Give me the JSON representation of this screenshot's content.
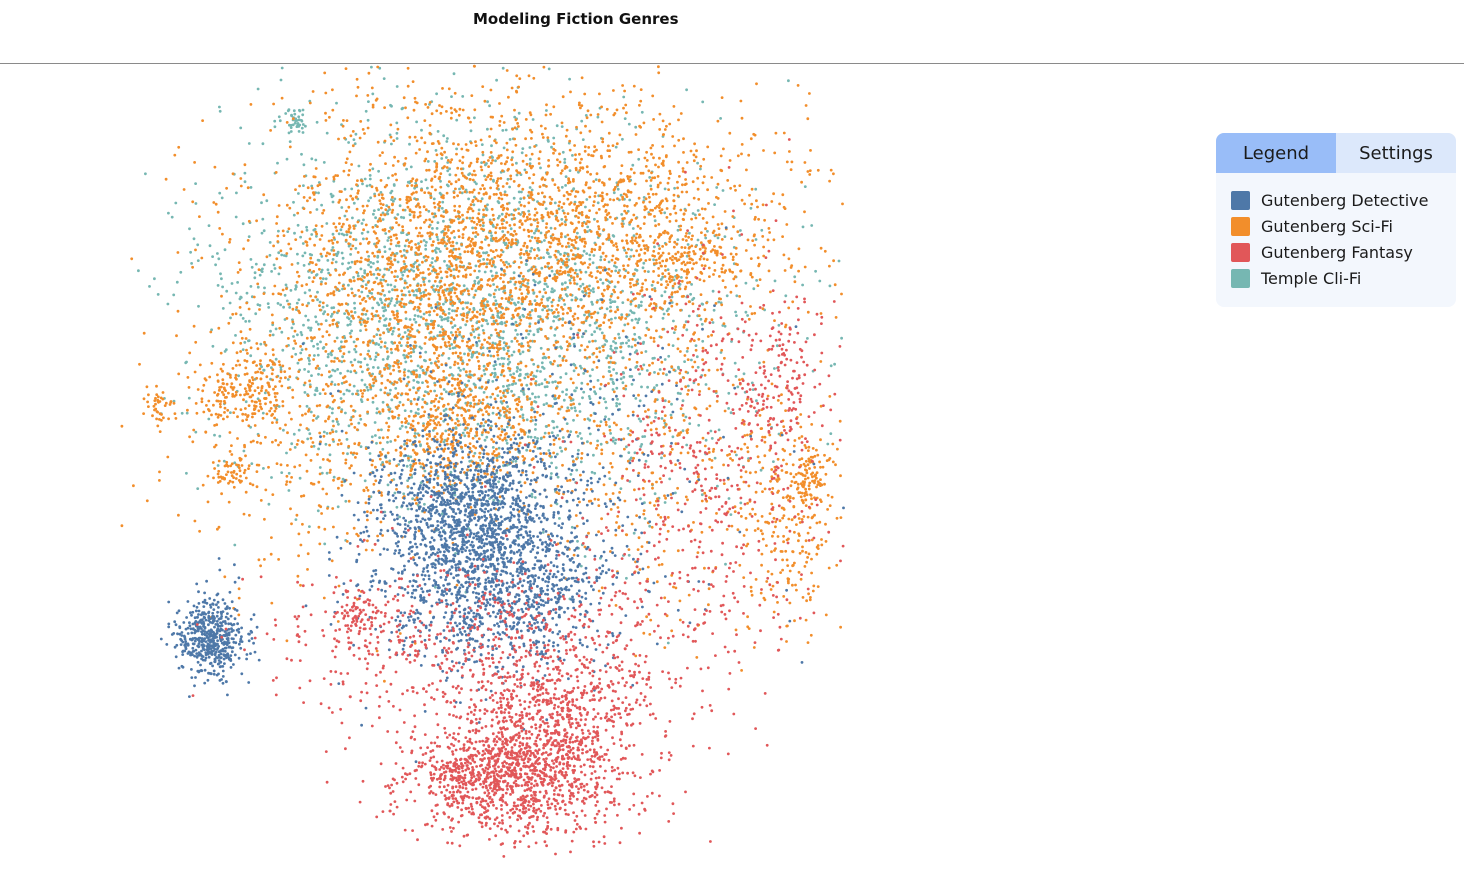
{
  "header": {
    "title": "Modeling Fiction Genres"
  },
  "panel": {
    "tabs": [
      {
        "label": "Legend",
        "active": true
      },
      {
        "label": "Settings",
        "active": false
      }
    ],
    "legend": [
      {
        "label": "Gutenberg Detective",
        "color": "#4e78a8"
      },
      {
        "label": "Gutenberg Sci-Fi",
        "color": "#f28e2b"
      },
      {
        "label": "Gutenberg Fantasy",
        "color": "#e15759"
      },
      {
        "label": "Temple Cli-Fi",
        "color": "#76b7b2"
      }
    ]
  },
  "chart_data": {
    "type": "scatter",
    "title": "Modeling Fiction Genres",
    "xlabel": "",
    "ylabel": "",
    "grid": false,
    "axes_visible": false,
    "legend_placement": "right",
    "series": [
      {
        "name": "Gutenberg Detective",
        "color": "#4e78a8"
      },
      {
        "name": "Gutenberg Sci-Fi",
        "color": "#f28e2b"
      },
      {
        "name": "Gutenberg Fantasy",
        "color": "#e15759"
      },
      {
        "name": "Temple Cli-Fi",
        "color": "#76b7b2"
      }
    ]
  }
}
